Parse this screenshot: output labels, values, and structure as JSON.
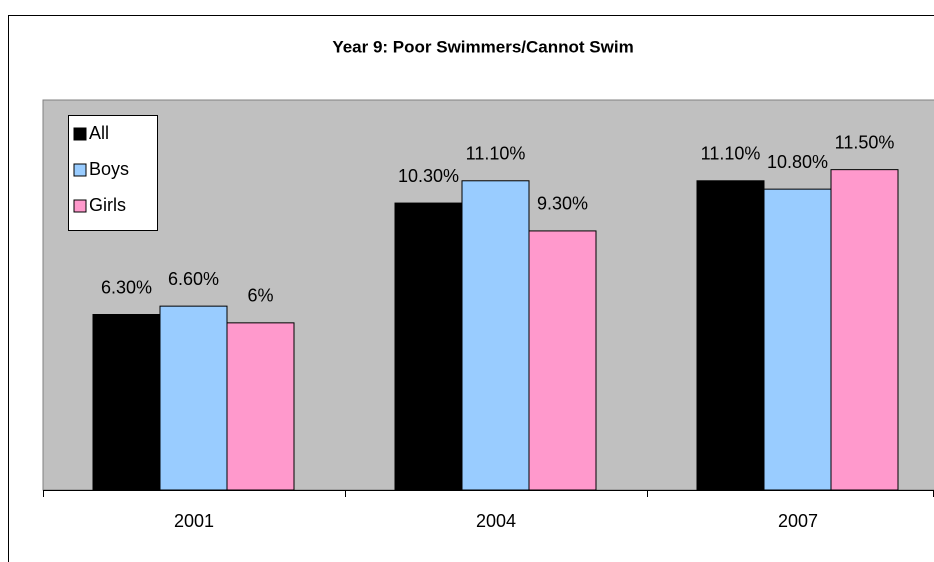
{
  "chart_data": {
    "type": "bar",
    "title": "Year 9: Poor Swimmers/Cannot Swim",
    "categories": [
      "2001",
      "2004",
      "2007"
    ],
    "series": [
      {
        "name": "All",
        "color": "#000000",
        "values": [
          6.3,
          10.3,
          11.1
        ],
        "value_labels": [
          "6.30%",
          "10.30%",
          "11.10%"
        ]
      },
      {
        "name": "Boys",
        "color": "#99ccff",
        "values": [
          6.6,
          11.1,
          10.8
        ],
        "value_labels": [
          "6.60%",
          "11.10%",
          "10.80%"
        ]
      },
      {
        "name": "Girls",
        "color": "#ff99cc",
        "values": [
          6,
          9.3,
          11.5
        ],
        "value_labels": [
          "6%",
          "9.30%",
          "11.50%"
        ]
      }
    ],
    "ylim": [
      0,
      14
    ],
    "legend": "top-left"
  }
}
